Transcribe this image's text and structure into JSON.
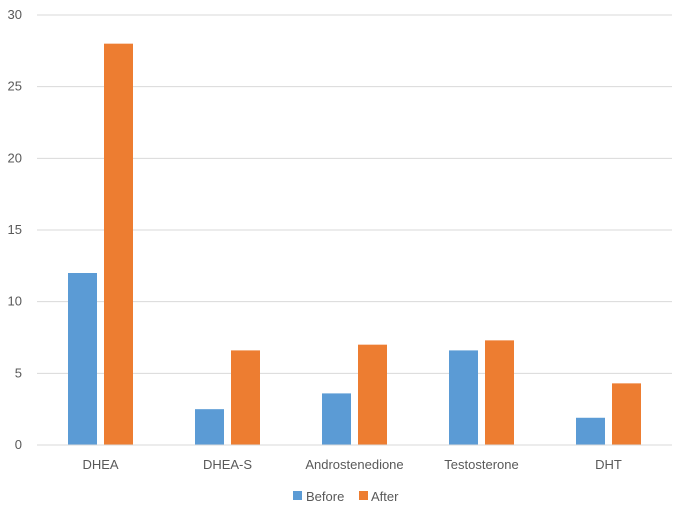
{
  "chart_data": {
    "type": "bar",
    "categories": [
      "DHEA",
      "DHEA-S",
      "Androstenedione",
      "Testosterone",
      "DHT"
    ],
    "series": [
      {
        "name": "Before",
        "values": [
          12.0,
          2.5,
          3.6,
          6.6,
          1.9
        ],
        "color": "#5B9BD5"
      },
      {
        "name": "After",
        "values": [
          28.0,
          6.6,
          7.0,
          7.3,
          4.3
        ],
        "color": "#ED7D31"
      }
    ],
    "title": "",
    "xlabel": "",
    "ylabel": "",
    "ylim": [
      0,
      30
    ],
    "yticks": [
      "0",
      "5",
      "10",
      "15",
      "20",
      "25",
      "30"
    ],
    "grid": true,
    "legend_position": "bottom"
  }
}
